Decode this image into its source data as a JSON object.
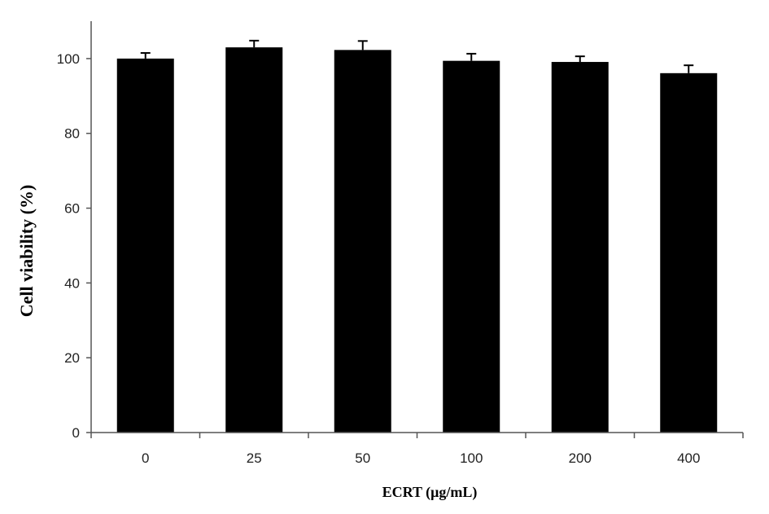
{
  "chart_data": {
    "type": "bar",
    "categories": [
      "0",
      "25",
      "50",
      "100",
      "200",
      "400"
    ],
    "values": [
      100,
      103,
      102.3,
      99.4,
      99.1,
      96.1
    ],
    "errors": [
      1.5,
      1.8,
      2.4,
      1.9,
      1.5,
      2.1
    ],
    "xlabel": "ECRT (μg/mL)",
    "ylabel": "Cell viability (%)",
    "ylim": [
      0,
      110
    ],
    "yticks": [
      0,
      20,
      40,
      60,
      80,
      100
    ],
    "grid": false,
    "legend": "none",
    "bar_color": "#000000"
  }
}
